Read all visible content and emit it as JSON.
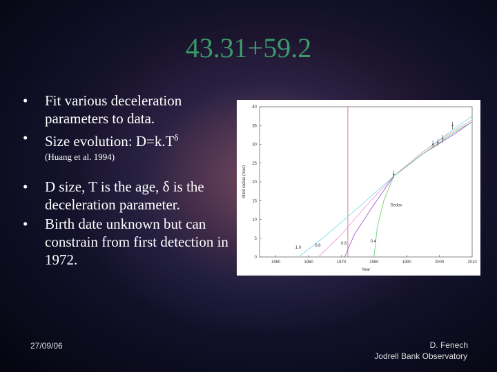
{
  "slide": {
    "title": "43.31+59.2",
    "bullets": [
      {
        "text": "Fit various deceleration parameters to data."
      },
      {
        "text": "Size evolution: D=k.T",
        "sup": "δ",
        "note": "(Huang et al. 1994)"
      },
      {
        "text": "D size, T is the age, δ is the deceleration parameter."
      },
      {
        "text": "Birth date unknown but can constrain from first detection in 1972."
      }
    ],
    "footer": {
      "date": "27/09/06",
      "author": "D. Fenech",
      "institution": "Jodrell Bank Observatory"
    }
  },
  "figure": {
    "type": "line",
    "xlabel": "Year",
    "ylabel": "Shell radius (mas)",
    "xlim": [
      1945,
      2010
    ],
    "ylim": [
      0,
      40
    ],
    "xticks": [
      1950,
      1960,
      1970,
      1980,
      1990,
      2000,
      2010
    ],
    "yticks": [
      0,
      5,
      10,
      15,
      20,
      25,
      30,
      35,
      40
    ],
    "first_detection": 1972,
    "annotation": "Sedov",
    "series": [
      {
        "name": "1.0",
        "color": "#7fe0e8",
        "x": [
          1957,
          1965,
          1975,
          1986,
          1995,
          2005,
          2010
        ],
        "values": [
          0,
          5.5,
          13,
          21.5,
          28,
          34.5,
          37.5
        ]
      },
      {
        "name": "0.8",
        "color": "#f0a0d8",
        "x": [
          1963,
          1970,
          1978,
          1986,
          1995,
          2005,
          2010
        ],
        "values": [
          0,
          6,
          14,
          21.5,
          28,
          34,
          36.5
        ]
      },
      {
        "name": "0.6",
        "color": "#9a5ad0",
        "x": [
          1971,
          1974,
          1980,
          1986,
          1995,
          2005,
          2010
        ],
        "values": [
          0,
          6,
          14,
          21.5,
          27.5,
          33,
          36
        ]
      },
      {
        "name": "0.4",
        "color": "#70d070",
        "x": [
          1980,
          1981,
          1983,
          1986,
          1995,
          2005,
          2010
        ],
        "values": [
          0,
          8,
          15,
          21.5,
          27.5,
          33.5,
          36
        ]
      }
    ],
    "points": {
      "x": [
        1986,
        1998,
        1999.5,
        2001,
        2004
      ],
      "values": [
        22,
        30,
        30.5,
        31.5,
        35
      ],
      "errors": [
        1,
        1,
        1,
        1,
        1
      ]
    }
  }
}
